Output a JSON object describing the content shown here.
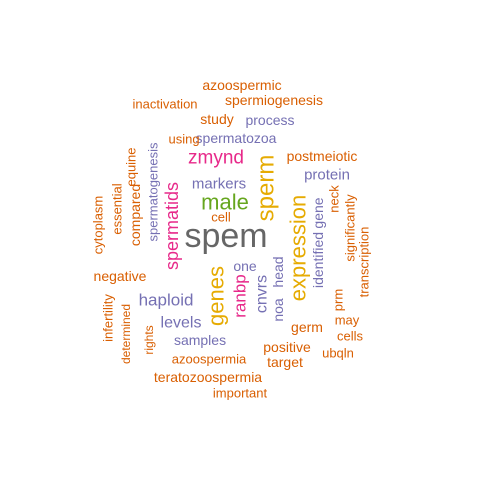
{
  "palette": {
    "orange": "#d95f02",
    "purple": "#7570b3",
    "magenta": "#e7298a",
    "green": "#66a61e",
    "gold": "#e6ab02",
    "gray": "#666666"
  },
  "words": [
    {
      "text": "spem",
      "color": "gray"
    },
    {
      "text": "expression",
      "color": "gold"
    },
    {
      "text": "sperm",
      "color": "gold"
    },
    {
      "text": "genes",
      "color": "gold"
    },
    {
      "text": "male",
      "color": "green"
    },
    {
      "text": "zmynd",
      "color": "magenta"
    },
    {
      "text": "spermatids",
      "color": "magenta"
    },
    {
      "text": "ranbp",
      "color": "magenta"
    },
    {
      "text": "haploid",
      "color": "purple"
    },
    {
      "text": "cnvrs",
      "color": "purple"
    },
    {
      "text": "identified",
      "color": "purple"
    },
    {
      "text": "noa",
      "color": "purple"
    },
    {
      "text": "head",
      "color": "purple"
    },
    {
      "text": "gene",
      "color": "purple"
    },
    {
      "text": "levels",
      "color": "purple"
    },
    {
      "text": "markers",
      "color": "purple"
    },
    {
      "text": "protein",
      "color": "purple"
    },
    {
      "text": "spermatozoa",
      "color": "purple"
    },
    {
      "text": "process",
      "color": "purple"
    },
    {
      "text": "spermatogenesis",
      "color": "purple"
    },
    {
      "text": "samples",
      "color": "purple"
    },
    {
      "text": "one",
      "color": "purple"
    },
    {
      "text": "azoospermic",
      "color": "orange"
    },
    {
      "text": "inactivation",
      "color": "orange"
    },
    {
      "text": "spermiogenesis",
      "color": "orange"
    },
    {
      "text": "study",
      "color": "orange"
    },
    {
      "text": "using",
      "color": "orange"
    },
    {
      "text": "postmeiotic",
      "color": "orange"
    },
    {
      "text": "cell",
      "color": "orange"
    },
    {
      "text": "equine",
      "color": "orange"
    },
    {
      "text": "compared",
      "color": "orange"
    },
    {
      "text": "essential",
      "color": "orange"
    },
    {
      "text": "cytoplasm",
      "color": "orange"
    },
    {
      "text": "negative",
      "color": "orange"
    },
    {
      "text": "infertility",
      "color": "orange"
    },
    {
      "text": "determined",
      "color": "orange"
    },
    {
      "text": "rights",
      "color": "orange"
    },
    {
      "text": "azoospermia",
      "color": "orange"
    },
    {
      "text": "teratozoospermia",
      "color": "orange"
    },
    {
      "text": "important",
      "color": "orange"
    },
    {
      "text": "positive",
      "color": "orange"
    },
    {
      "text": "target",
      "color": "orange"
    },
    {
      "text": "germ",
      "color": "orange"
    },
    {
      "text": "ubqln",
      "color": "orange"
    },
    {
      "text": "may",
      "color": "orange"
    },
    {
      "text": "cells",
      "color": "orange"
    },
    {
      "text": "prm",
      "color": "orange"
    },
    {
      "text": "neck",
      "color": "orange"
    },
    {
      "text": "significantly",
      "color": "orange"
    },
    {
      "text": "transcription",
      "color": "orange"
    }
  ]
}
